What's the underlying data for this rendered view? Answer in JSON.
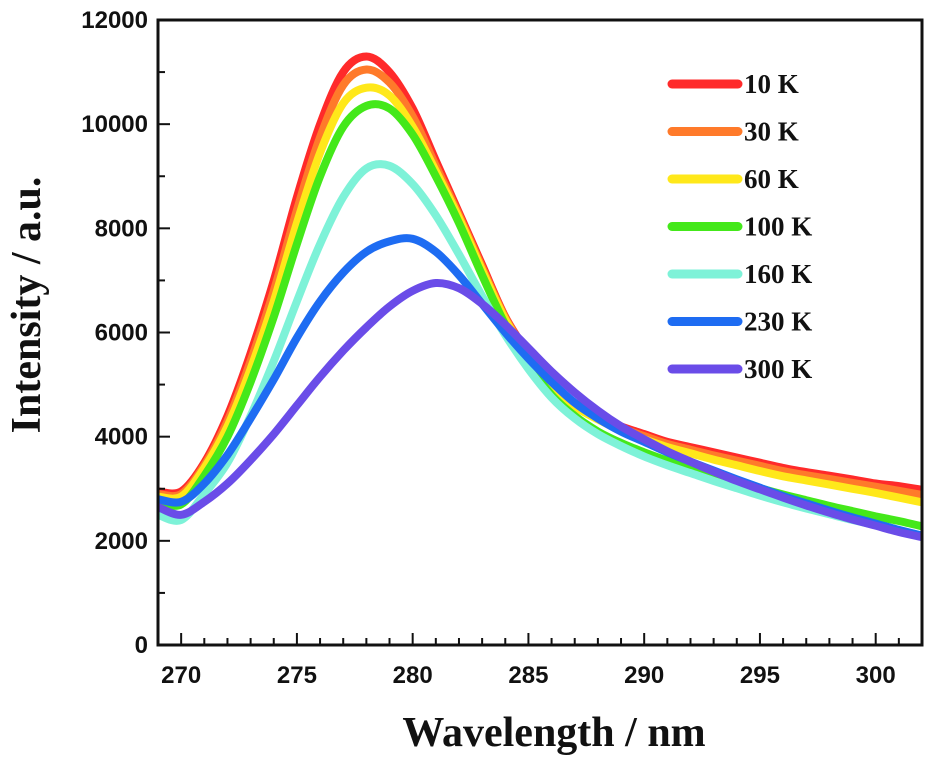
{
  "chart_data": {
    "type": "line",
    "title": "",
    "xlabel": "Wavelength / nm",
    "ylabel": "Intensity / a.u.",
    "xlim": [
      269,
      302
    ],
    "ylim": [
      0,
      12000
    ],
    "x_ticks": [
      270,
      275,
      280,
      285,
      290,
      295,
      300
    ],
    "y_ticks": [
      0,
      2000,
      4000,
      6000,
      8000,
      10000,
      12000
    ],
    "legend_position": "top-right",
    "x": [
      269,
      270,
      271,
      272,
      273,
      274,
      275,
      276,
      277,
      278,
      279,
      280,
      281,
      282,
      283,
      284,
      285,
      286,
      287,
      288,
      289,
      290,
      291,
      292,
      293,
      294,
      295,
      296,
      297,
      298,
      299,
      300,
      301,
      302
    ],
    "series": [
      {
        "name": "10 K",
        "color": "#ff2a2a",
        "values": [
          2950,
          2950,
          3500,
          4400,
          5600,
          7000,
          8600,
          10000,
          11000,
          11300,
          11000,
          10300,
          9300,
          8300,
          7300,
          6300,
          5600,
          5000,
          4650,
          4400,
          4200,
          4050,
          3900,
          3800,
          3700,
          3600,
          3500,
          3400,
          3320,
          3250,
          3180,
          3100,
          3050,
          2980
        ]
      },
      {
        "name": "30 K",
        "color": "#ff7a2a",
        "values": [
          2900,
          2900,
          3450,
          4300,
          5450,
          6800,
          8350,
          9750,
          10750,
          11050,
          10800,
          10150,
          9200,
          8250,
          7250,
          6280,
          5580,
          4980,
          4620,
          4370,
          4170,
          4010,
          3860,
          3750,
          3640,
          3540,
          3440,
          3340,
          3260,
          3190,
          3110,
          3040,
          2960,
          2880
        ]
      },
      {
        "name": "60 K",
        "color": "#ffe81a",
        "values": [
          2850,
          2850,
          3400,
          4200,
          5300,
          6600,
          8100,
          9450,
          10400,
          10700,
          10550,
          9950,
          9100,
          8200,
          7200,
          6250,
          5550,
          4950,
          4580,
          4330,
          4120,
          3950,
          3800,
          3680,
          3560,
          3450,
          3340,
          3240,
          3160,
          3080,
          3000,
          2920,
          2830,
          2740
        ]
      },
      {
        "name": "100 K",
        "color": "#44e81a",
        "values": [
          2750,
          2700,
          3250,
          4000,
          5050,
          6300,
          7700,
          9000,
          9950,
          10350,
          10300,
          9800,
          9000,
          8100,
          7100,
          6150,
          5400,
          4800,
          4400,
          4100,
          3880,
          3700,
          3540,
          3400,
          3260,
          3140,
          3010,
          2890,
          2780,
          2670,
          2570,
          2470,
          2380,
          2280
        ]
      },
      {
        "name": "160 K",
        "color": "#7ef2d8",
        "values": [
          2500,
          2400,
          2900,
          3500,
          4400,
          5450,
          6600,
          7700,
          8600,
          9150,
          9200,
          8850,
          8250,
          7500,
          6700,
          5950,
          5300,
          4750,
          4350,
          4050,
          3820,
          3620,
          3450,
          3300,
          3150,
          3010,
          2870,
          2740,
          2620,
          2510,
          2400,
          2300,
          2200,
          2100
        ]
      },
      {
        "name": "230 K",
        "color": "#1e6cf2",
        "values": [
          2800,
          2750,
          3100,
          3650,
          4350,
          5100,
          5900,
          6600,
          7150,
          7550,
          7750,
          7800,
          7550,
          7100,
          6550,
          6000,
          5500,
          5050,
          4650,
          4350,
          4100,
          3900,
          3700,
          3520,
          3350,
          3180,
          3020,
          2860,
          2720,
          2580,
          2450,
          2330,
          2210,
          2100
        ]
      },
      {
        "name": "300 K",
        "color": "#6a4ce8",
        "values": [
          2650,
          2500,
          2750,
          3100,
          3550,
          4050,
          4600,
          5150,
          5650,
          6100,
          6500,
          6800,
          6950,
          6850,
          6550,
          6150,
          5700,
          5250,
          4850,
          4500,
          4200,
          3950,
          3720,
          3520,
          3330,
          3150,
          2990,
          2830,
          2680,
          2540,
          2410,
          2290,
          2170,
          2070
        ]
      }
    ]
  }
}
